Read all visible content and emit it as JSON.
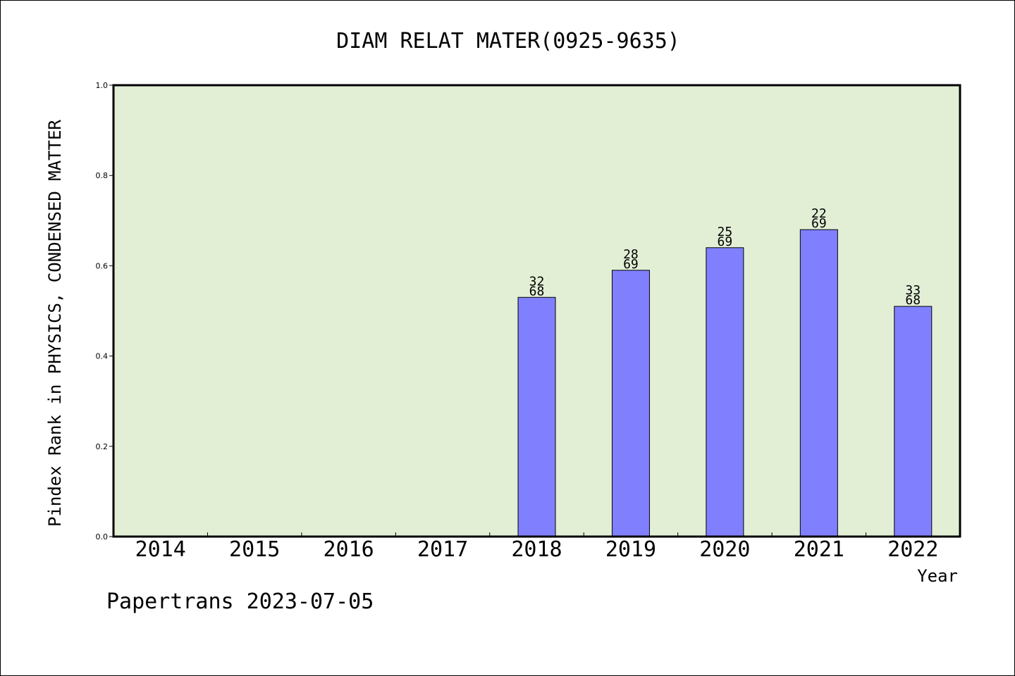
{
  "chart_data": {
    "type": "bar",
    "title": "DIAM RELAT MATER(0925-9635)",
    "xlabel": "Year",
    "ylabel": "Pindex Rank in PHYSICS, CONDENSED MATTER",
    "categories": [
      "2014",
      "2015",
      "2016",
      "2017",
      "2018",
      "2019",
      "2020",
      "2021",
      "2022"
    ],
    "values": [
      null,
      null,
      null,
      null,
      0.53,
      0.59,
      0.64,
      0.68,
      0.51
    ],
    "bar_labels": [
      null,
      null,
      null,
      null,
      [
        "32",
        "68"
      ],
      [
        "28",
        "69"
      ],
      [
        "25",
        "69"
      ],
      [
        "22",
        "69"
      ],
      [
        "33",
        "68"
      ]
    ],
    "ylim": [
      0,
      1.0
    ],
    "yticks": [
      "0.0",
      "0.2",
      "0.4",
      "0.6",
      "0.8",
      "1.0"
    ],
    "grid": false,
    "legend": "none",
    "colors": {
      "plot_background": "#e2efd5",
      "bar_fill": "#8080ff",
      "bar_stroke": "#000000",
      "axis": "#000000"
    }
  },
  "footer": {
    "credit": "Papertrans 2023-07-05"
  }
}
